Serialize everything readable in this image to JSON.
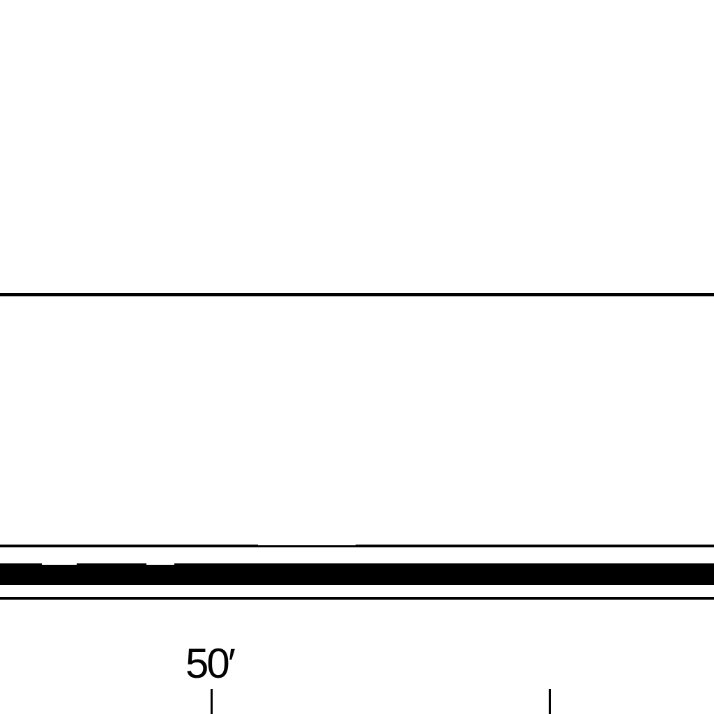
{
  "drawing": {
    "dimension_label": "50′"
  }
}
